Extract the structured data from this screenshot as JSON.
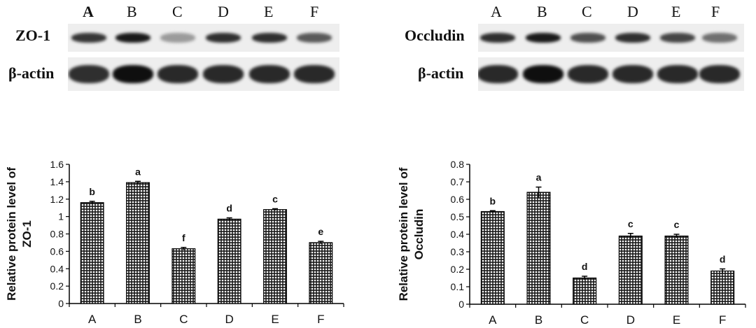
{
  "blots": [
    {
      "lanes": [
        "A",
        "B",
        "C",
        "D",
        "E",
        "F"
      ],
      "protein_label": "ZO-1",
      "control_label": "β-actin",
      "protein_band_intensity": [
        0.82,
        0.95,
        0.35,
        0.85,
        0.85,
        0.65
      ],
      "control_band_intensity": [
        0.85,
        1.0,
        0.88,
        0.88,
        0.88,
        0.88
      ]
    },
    {
      "lanes": [
        "A",
        "B",
        "C",
        "D",
        "E",
        "F"
      ],
      "protein_label": "Occludin",
      "control_label": "β-actin",
      "protein_band_intensity": [
        0.85,
        0.95,
        0.7,
        0.85,
        0.75,
        0.55
      ],
      "control_band_intensity": [
        0.88,
        1.0,
        0.88,
        0.88,
        0.88,
        0.88
      ]
    }
  ],
  "chart_data": [
    {
      "type": "bar",
      "categories": [
        "A",
        "B",
        "C",
        "D",
        "E",
        "F"
      ],
      "values": [
        1.16,
        1.39,
        0.63,
        0.97,
        1.08,
        0.7
      ],
      "errors": [
        0.015,
        0.015,
        0.015,
        0.015,
        0.01,
        0.015
      ],
      "significance_letters": [
        "b",
        "a",
        "f",
        "d",
        "c",
        "e"
      ],
      "ylabel_lines": [
        "Relative protein level of",
        "ZO-1"
      ],
      "ylim": [
        0,
        1.6
      ],
      "yticks": [
        "0",
        "0.2",
        "0.4",
        "0.6",
        "0.8",
        "1",
        "1.2",
        "1.4",
        "1.6"
      ],
      "grid": false
    },
    {
      "type": "bar",
      "categories": [
        "A",
        "B",
        "C",
        "D",
        "E",
        "F"
      ],
      "values": [
        0.53,
        0.64,
        0.15,
        0.39,
        0.39,
        0.19
      ],
      "errors": [
        0.005,
        0.03,
        0.01,
        0.015,
        0.01,
        0.012
      ],
      "significance_letters": [
        "b",
        "a",
        "d",
        "c",
        "c",
        "d"
      ],
      "ylabel_lines": [
        "Relative protein level of",
        "Occludin"
      ],
      "ylim": [
        0,
        0.8
      ],
      "yticks": [
        "0",
        "0.1",
        "0.2",
        "0.3",
        "0.4",
        "0.5",
        "0.6",
        "0.7",
        "0.8"
      ],
      "grid": false
    }
  ],
  "colors": {
    "bar_dark": "#222222",
    "bar_light": "#ffffff",
    "axis": "#000000",
    "band": "#1a1a1a",
    "blot_bg": "#eeeeee"
  }
}
